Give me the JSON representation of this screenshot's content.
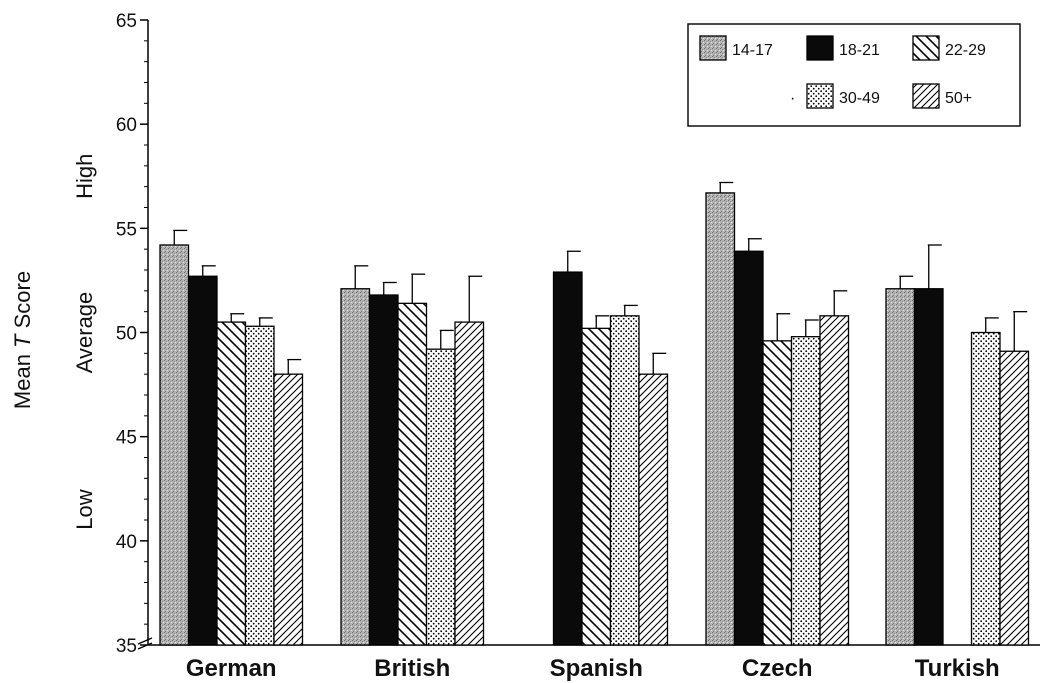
{
  "chart_data": {
    "type": "bar",
    "ylabel_prefix": "Mean ",
    "ylabel_italic": "T",
    "ylabel_suffix": " Score",
    "ylim": [
      35,
      65
    ],
    "yticks": [
      35,
      40,
      45,
      50,
      55,
      60,
      65
    ],
    "level_labels": [
      "High",
      "Average",
      "Low"
    ],
    "categories": [
      "German",
      "British",
      "Spanish",
      "Czech",
      "Turkish"
    ],
    "series": [
      {
        "name": "14-17",
        "pattern": "stipple-gray",
        "values": [
          54.2,
          52.1,
          null,
          56.7,
          52.1
        ],
        "errors": [
          0.7,
          1.1,
          null,
          0.5,
          0.6
        ]
      },
      {
        "name": "18-21",
        "pattern": "solid-black",
        "values": [
          52.7,
          51.8,
          52.9,
          53.9,
          52.1
        ],
        "errors": [
          0.5,
          0.6,
          1.0,
          0.6,
          2.1
        ]
      },
      {
        "name": "22-29",
        "pattern": "backslash-hatch",
        "values": [
          50.5,
          51.4,
          50.2,
          49.6,
          null
        ],
        "errors": [
          0.4,
          1.4,
          0.6,
          1.3,
          null
        ]
      },
      {
        "name": "30-49",
        "pattern": "dots",
        "values": [
          50.3,
          49.2,
          50.8,
          49.8,
          50.0
        ],
        "errors": [
          0.4,
          0.9,
          0.5,
          0.8,
          0.7
        ]
      },
      {
        "name": "50+",
        "pattern": "slash-hatch",
        "values": [
          48.0,
          50.5,
          48.0,
          50.8,
          49.1
        ],
        "errors": [
          0.7,
          2.2,
          1.0,
          1.2,
          1.9
        ]
      }
    ],
    "legend_position": "top-right",
    "legend_extra_mark": "·",
    "grid": false
  }
}
